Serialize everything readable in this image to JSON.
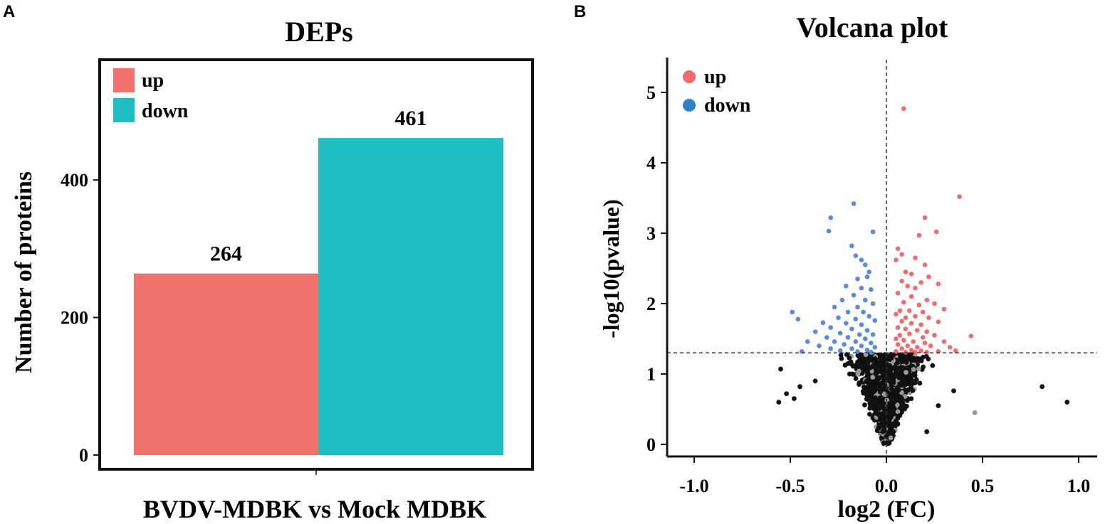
{
  "chart_data": [
    {
      "panel": "A",
      "type": "bar",
      "title": "DEPs",
      "xlabel": "BVDV-MDBK vs Mock MDBK",
      "ylabel": "Number of proteins",
      "ylim": [
        0,
        580
      ],
      "yticks": [
        0,
        200,
        400
      ],
      "categories": [
        "BVDV-MDBK vs Mock MDBK"
      ],
      "legend_position": "top-left",
      "series": [
        {
          "name": "up",
          "values": [
            264
          ],
          "color": "#f1736d"
        },
        {
          "name": "down",
          "values": [
            461
          ],
          "color": "#1dbdc3"
        }
      ]
    },
    {
      "panel": "B",
      "type": "scatter",
      "title": "Volcana plot",
      "xlabel": "log2 (FC)",
      "ylabel": "-log10(pvalue)",
      "xlim": [
        -1.1,
        1.1
      ],
      "ylim": [
        -0.15,
        5.5
      ],
      "xticks": [
        -1.0,
        -0.5,
        0.0,
        0.5,
        1.0
      ],
      "xtick_labels": [
        "-1.0",
        "-0.5",
        "0.0",
        "0.5",
        "1.0"
      ],
      "yticks": [
        0,
        1,
        2,
        3,
        4,
        5
      ],
      "threshold_y": 1.3,
      "threshold_x": 0,
      "legend_position": "top-left",
      "legend": [
        {
          "name": "up",
          "color": "#ef6b6e"
        },
        {
          "name": "down",
          "color": "#2e80c8"
        }
      ],
      "point_colors": {
        "up": "#ef6b6e",
        "down": "#5a8ad8",
        "ns": "#111111",
        "ns_light": "#9a9a9a"
      },
      "series": [
        {
          "name": "up",
          "points": [
            [
              0.09,
              4.77
            ],
            [
              0.38,
              3.52
            ],
            [
              0.2,
              3.22
            ],
            [
              0.26,
              3.02
            ],
            [
              0.17,
              2.97
            ],
            [
              0.06,
              2.78
            ],
            [
              0.08,
              2.7
            ],
            [
              0.05,
              2.62
            ],
            [
              0.15,
              2.65
            ],
            [
              0.2,
              2.55
            ],
            [
              0.1,
              2.45
            ],
            [
              0.13,
              2.42
            ],
            [
              0.22,
              2.38
            ],
            [
              0.08,
              2.32
            ],
            [
              0.18,
              2.3
            ],
            [
              0.11,
              2.25
            ],
            [
              0.15,
              2.22
            ],
            [
              0.27,
              2.28
            ],
            [
              0.06,
              2.15
            ],
            [
              0.13,
              2.1
            ],
            [
              0.21,
              2.05
            ],
            [
              0.09,
              2.02
            ],
            [
              0.17,
              1.98
            ],
            [
              0.25,
              2.0
            ],
            [
              0.07,
              1.9
            ],
            [
              0.12,
              1.9
            ],
            [
              0.19,
              1.88
            ],
            [
              0.3,
              1.92
            ],
            [
              0.05,
              1.85
            ],
            [
              0.1,
              1.8
            ],
            [
              0.15,
              1.82
            ],
            [
              0.22,
              1.8
            ],
            [
              0.08,
              1.75
            ],
            [
              0.13,
              1.72
            ],
            [
              0.18,
              1.7
            ],
            [
              0.27,
              1.74
            ],
            [
              0.06,
              1.66
            ],
            [
              0.1,
              1.64
            ],
            [
              0.16,
              1.62
            ],
            [
              0.21,
              1.6
            ],
            [
              0.12,
              1.57
            ],
            [
              0.44,
              1.54
            ],
            [
              0.07,
              1.55
            ],
            [
              0.19,
              1.52
            ],
            [
              0.25,
              1.55
            ],
            [
              0.05,
              1.5
            ],
            [
              0.09,
              1.48
            ],
            [
              0.14,
              1.46
            ],
            [
              0.2,
              1.44
            ],
            [
              0.3,
              1.46
            ],
            [
              0.06,
              1.42
            ],
            [
              0.11,
              1.4
            ],
            [
              0.16,
              1.38
            ],
            [
              0.23,
              1.4
            ],
            [
              0.33,
              1.38
            ],
            [
              0.08,
              1.36
            ],
            [
              0.13,
              1.34
            ],
            [
              0.18,
              1.33
            ],
            [
              0.27,
              1.32
            ],
            [
              0.05,
              1.32
            ],
            [
              0.1,
              1.31
            ],
            [
              0.15,
              1.31
            ],
            [
              0.21,
              1.31
            ],
            [
              0.36,
              1.33
            ]
          ]
        },
        {
          "name": "down",
          "points": [
            [
              -0.17,
              3.42
            ],
            [
              -0.29,
              3.22
            ],
            [
              -0.3,
              3.03
            ],
            [
              -0.07,
              3.02
            ],
            [
              -0.18,
              2.82
            ],
            [
              -0.16,
              2.68
            ],
            [
              -0.13,
              2.62
            ],
            [
              -0.11,
              2.55
            ],
            [
              -0.09,
              2.45
            ],
            [
              -0.15,
              2.35
            ],
            [
              -0.1,
              2.38
            ],
            [
              -0.21,
              2.25
            ],
            [
              -0.13,
              2.22
            ],
            [
              -0.08,
              2.2
            ],
            [
              -0.17,
              2.12
            ],
            [
              -0.23,
              2.05
            ],
            [
              -0.11,
              2.05
            ],
            [
              -0.07,
              2.0
            ],
            [
              -0.27,
              1.95
            ],
            [
              -0.15,
              1.95
            ],
            [
              -0.49,
              1.88
            ],
            [
              -0.2,
              1.88
            ],
            [
              -0.12,
              1.88
            ],
            [
              -0.09,
              1.82
            ],
            [
              -0.25,
              1.8
            ],
            [
              -0.46,
              1.78
            ],
            [
              -0.16,
              1.78
            ],
            [
              -0.06,
              1.76
            ],
            [
              -0.33,
              1.73
            ],
            [
              -0.21,
              1.72
            ],
            [
              -0.13,
              1.7
            ],
            [
              -0.29,
              1.66
            ],
            [
              -0.18,
              1.64
            ],
            [
              -0.1,
              1.62
            ],
            [
              -0.37,
              1.6
            ],
            [
              -0.24,
              1.58
            ],
            [
              -0.14,
              1.56
            ],
            [
              -0.07,
              1.56
            ],
            [
              -0.31,
              1.52
            ],
            [
              -0.2,
              1.52
            ],
            [
              -0.11,
              1.5
            ],
            [
              -0.41,
              1.46
            ],
            [
              -0.27,
              1.46
            ],
            [
              -0.16,
              1.46
            ],
            [
              -0.08,
              1.44
            ],
            [
              -0.22,
              1.42
            ],
            [
              -0.13,
              1.4
            ],
            [
              -0.35,
              1.4
            ],
            [
              -0.06,
              1.38
            ],
            [
              -0.29,
              1.36
            ],
            [
              -0.18,
              1.36
            ],
            [
              -0.1,
              1.34
            ],
            [
              -0.24,
              1.33
            ],
            [
              -0.15,
              1.32
            ],
            [
              -0.44,
              1.32
            ],
            [
              -0.08,
              1.31
            ]
          ]
        },
        {
          "name": "not significant",
          "outliers": [
            [
              -0.55,
              1.07
            ],
            [
              -0.52,
              0.72
            ],
            [
              -0.56,
              0.6
            ],
            [
              -0.48,
              0.65
            ],
            [
              -0.45,
              0.82
            ],
            [
              0.81,
              0.82
            ],
            [
              0.94,
              0.6
            ],
            [
              0.46,
              0.45
            ],
            [
              0.35,
              0.76
            ],
            [
              0.27,
              0.55
            ],
            [
              0.21,
              0.18
            ],
            [
              -0.37,
              0.9
            ],
            [
              0.24,
              1.12
            ]
          ],
          "count_estimate": 2500
        }
      ]
    }
  ],
  "panels": {
    "a": {
      "letter": "A"
    },
    "b": {
      "letter": "B"
    }
  }
}
